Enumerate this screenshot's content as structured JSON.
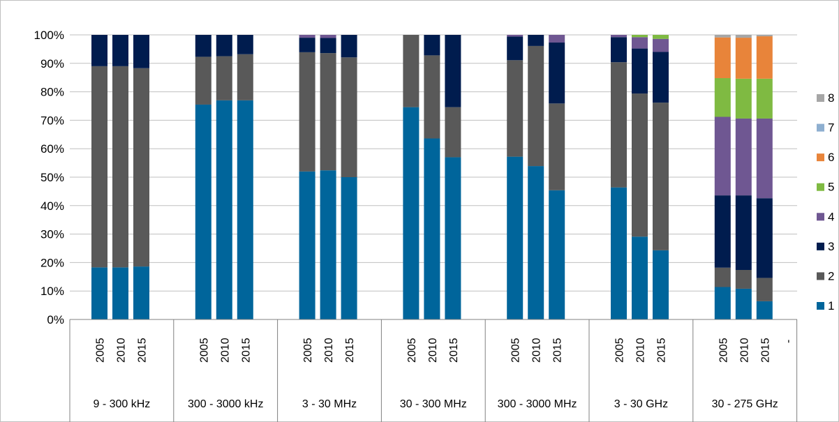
{
  "chart_data": {
    "type": "bar",
    "stacked": true,
    "percent": true,
    "title": "",
    "xlabel": "",
    "ylabel": "",
    "ylim": [
      0,
      100
    ],
    "y_ticks": [
      "0%",
      "10%",
      "20%",
      "30%",
      "40%",
      "50%",
      "60%",
      "70%",
      "80%",
      "90%",
      "100%"
    ],
    "grid": true,
    "legend": "right",
    "groups": [
      {
        "label": "9 - 300 kHz",
        "years": [
          "2005",
          "2010",
          "2015"
        ]
      },
      {
        "label": "300 - 3000 kHz",
        "years": [
          "2005",
          "2010",
          "2015"
        ]
      },
      {
        "label": "3 - 30 MHz",
        "years": [
          "2005",
          "2010",
          "2015"
        ]
      },
      {
        "label": "30 - 300 MHz",
        "years": [
          "2005",
          "2010",
          "2015"
        ]
      },
      {
        "label": "300 - 3000 MHz",
        "years": [
          "2005",
          "2010",
          "2015"
        ]
      },
      {
        "label": "3 - 30 GHz",
        "years": [
          "2005",
          "2010",
          "2015"
        ]
      },
      {
        "label": "30 - 275 GHz",
        "years": [
          "2005",
          "2010",
          "2015"
        ]
      }
    ],
    "trailing_tick": "-",
    "series": [
      {
        "name": "1",
        "color": "#00659b",
        "values": [
          18.3,
          18.3,
          18.6,
          75.5,
          77.0,
          77.0,
          52.0,
          52.4,
          50.0,
          74.6,
          63.6,
          57.0,
          57.2,
          53.9,
          45.4,
          46.4,
          29.1,
          24.3,
          11.4,
          10.8,
          6.4
        ]
      },
      {
        "name": "2",
        "color": "#595959",
        "values": [
          70.7,
          70.7,
          69.7,
          16.8,
          15.5,
          16.2,
          41.9,
          41.2,
          42.1,
          25.4,
          29.2,
          17.6,
          33.9,
          42.2,
          30.5,
          44.0,
          50.3,
          51.9,
          6.8,
          6.6,
          8.2
        ]
      },
      {
        "name": "3",
        "color": "#001c4e",
        "values": [
          11.0,
          11.0,
          11.7,
          7.7,
          7.5,
          6.8,
          5.1,
          5.3,
          7.9,
          0,
          7.2,
          25.4,
          8.3,
          3.9,
          21.4,
          8.8,
          15.8,
          17.8,
          25.4,
          26.2,
          28.0
        ]
      },
      {
        "name": "4",
        "color": "#6f5792",
        "values": [
          0,
          0,
          0,
          0,
          0,
          0,
          1.0,
          1.1,
          0,
          0,
          0,
          0,
          0.6,
          0,
          2.7,
          0.8,
          4.0,
          4.6,
          27.6,
          27.0,
          28.0
        ]
      },
      {
        "name": "5",
        "color": "#7fba42",
        "values": [
          0,
          0,
          0,
          0,
          0,
          0,
          0,
          0,
          0,
          0,
          0,
          0,
          0,
          0,
          0,
          0,
          0.8,
          1.4,
          13.6,
          14.0,
          14.0
        ]
      },
      {
        "name": "6",
        "color": "#e8843a",
        "values": [
          0,
          0,
          0,
          0,
          0,
          0,
          0,
          0,
          0,
          0,
          0,
          0,
          0,
          0,
          0,
          0,
          0,
          0,
          14.3,
          14.4,
          14.9
        ]
      },
      {
        "name": "7",
        "color": "#8eafd0",
        "values": [
          0,
          0,
          0,
          0,
          0,
          0,
          0,
          0,
          0,
          0,
          0,
          0,
          0,
          0,
          0,
          0,
          0,
          0,
          0,
          0,
          0
        ]
      },
      {
        "name": "8",
        "color": "#a6a6a6",
        "values": [
          0,
          0,
          0,
          0,
          0,
          0,
          0,
          0,
          0,
          0,
          0,
          0,
          0,
          0,
          0,
          0,
          0,
          0,
          0.9,
          1.0,
          0.5
        ]
      }
    ]
  }
}
